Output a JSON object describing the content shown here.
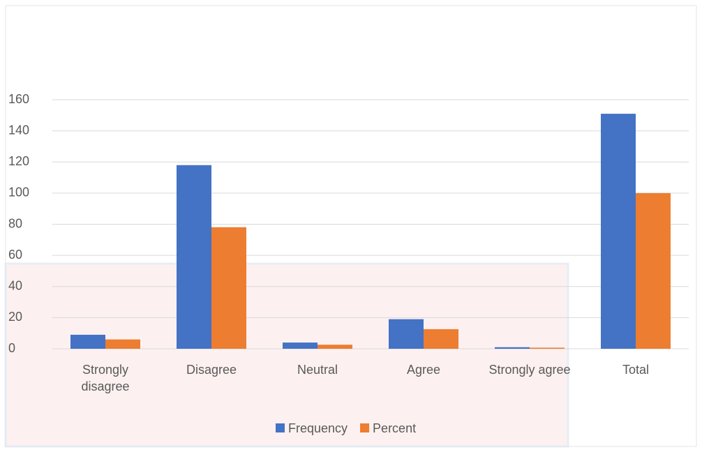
{
  "chart_data": {
    "type": "bar",
    "categories": [
      "Strongly disagree",
      "Disagree",
      "Neutral",
      "Agree",
      "Strongly agree",
      "Total"
    ],
    "series": [
      {
        "name": "Frequency",
        "color": "#4472c4",
        "values": [
          9,
          118,
          4,
          19,
          1,
          151
        ]
      },
      {
        "name": "Percent",
        "color": "#ed7d31",
        "values": [
          6,
          78.1,
          2.6,
          12.6,
          0.7,
          100
        ]
      }
    ],
    "ylim": [
      0,
      160
    ],
    "yticks": [
      0,
      20,
      40,
      60,
      80,
      100,
      120,
      140,
      160
    ],
    "grid": true,
    "legend": "bottom"
  }
}
